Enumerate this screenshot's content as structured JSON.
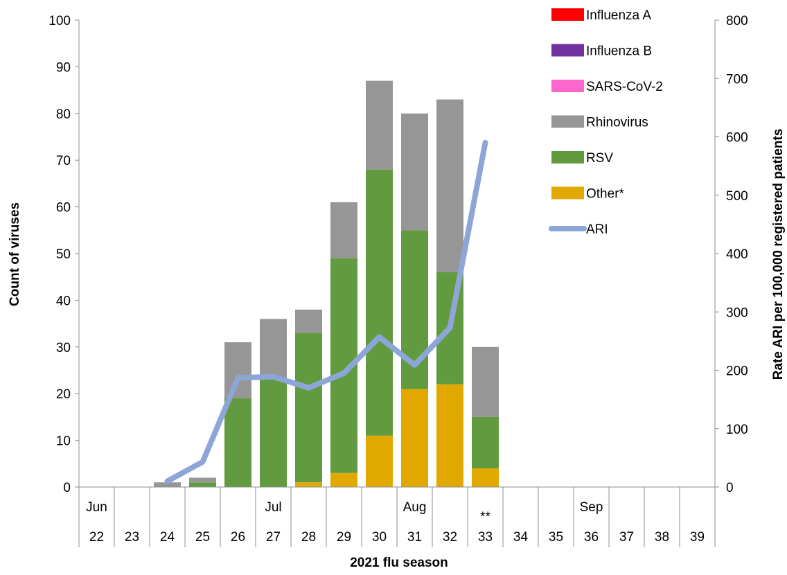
{
  "chart_data": {
    "type": "bar",
    "stacked": true,
    "xlabel": "2021 flu season",
    "ylabel": "Count of viruses",
    "y2label": "Rate ARI per 100,000 registered patients",
    "ylim": [
      0,
      100
    ],
    "y2lim": [
      0,
      800
    ],
    "yticks": [
      "0",
      "10",
      "20",
      "30",
      "40",
      "50",
      "60",
      "70",
      "80",
      "90",
      "100"
    ],
    "y2ticks": [
      "0",
      "100",
      "200",
      "300",
      "400",
      "500",
      "600",
      "700",
      "800"
    ],
    "categories": [
      "22",
      "23",
      "24",
      "25",
      "26",
      "27",
      "28",
      "29",
      "30",
      "31",
      "32",
      "33",
      "34",
      "35",
      "36",
      "37",
      "38",
      "39"
    ],
    "month_labels": [
      "Jun",
      "",
      "",
      "",
      "",
      "Jul",
      "",
      "",
      "",
      "Aug",
      "",
      "",
      "",
      "",
      "Sep",
      "",
      "",
      ""
    ],
    "note_labels": [
      "",
      "",
      "",
      "",
      "",
      "",
      "",
      "",
      "",
      "",
      "",
      "**",
      "",
      "",
      "",
      "",
      "",
      ""
    ],
    "series": [
      {
        "name": "Influenza A",
        "kind": "bar",
        "color": "#ff0000",
        "values": [
          0,
          0,
          0,
          0,
          0,
          0,
          0,
          0,
          0,
          0,
          0,
          0,
          0,
          0,
          0,
          0,
          0,
          0
        ]
      },
      {
        "name": "Influenza B",
        "kind": "bar",
        "color": "#7030a0",
        "values": [
          0,
          0,
          0,
          0,
          0,
          0,
          0,
          0,
          0,
          0,
          0,
          0,
          0,
          0,
          0,
          0,
          0,
          0
        ]
      },
      {
        "name": "SARS-CoV-2",
        "kind": "bar",
        "color": "#ff66cc",
        "values": [
          0,
          0,
          0,
          0,
          0,
          0,
          0,
          0,
          0,
          0,
          0,
          0,
          0,
          0,
          0,
          0,
          0,
          0
        ]
      },
      {
        "name": "Rhinovirus",
        "kind": "bar",
        "color": "#969696",
        "values": [
          0,
          0,
          1,
          1,
          12,
          13,
          5,
          12,
          19,
          25,
          37,
          15,
          0,
          0,
          0,
          0,
          0,
          0
        ]
      },
      {
        "name": "RSV",
        "kind": "bar",
        "color": "#629b3f",
        "values": [
          0,
          0,
          0,
          1,
          19,
          23,
          32,
          46,
          57,
          34,
          24,
          11,
          0,
          0,
          0,
          0,
          0,
          0
        ]
      },
      {
        "name": "Other*",
        "kind": "bar",
        "color": "#e1a900",
        "values": [
          0,
          0,
          0,
          0,
          0,
          0,
          1,
          3,
          11,
          21,
          22,
          4,
          0,
          0,
          0,
          0,
          0,
          0
        ]
      },
      {
        "name": "ARI",
        "kind": "line",
        "axis": "right",
        "color": "#8ea5d8",
        "values": [
          null,
          null,
          10,
          43,
          187,
          189,
          170,
          195,
          257,
          209,
          273,
          590,
          null,
          null,
          null,
          null,
          null,
          null
        ]
      }
    ],
    "legend_position": "top-right",
    "grid": false
  }
}
